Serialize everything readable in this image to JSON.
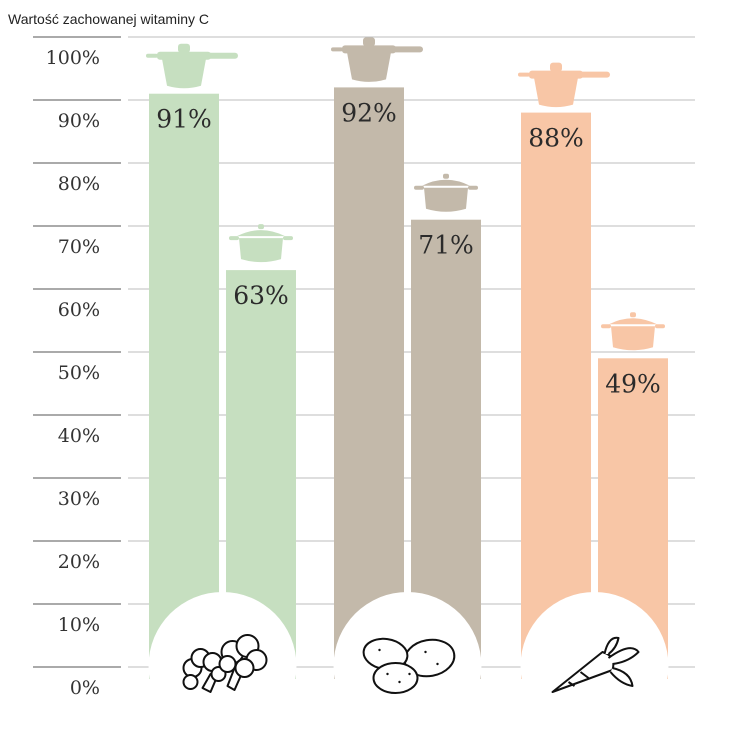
{
  "chart_data": {
    "type": "bar",
    "title": "Wartość zachowanej witaminy C",
    "xlabel": "",
    "ylabel": "",
    "ylim": [
      0,
      100
    ],
    "y_ticks": [
      "0%",
      "10%",
      "20%",
      "30%",
      "40%",
      "50%",
      "60%",
      "70%",
      "80%",
      "90%",
      "100%"
    ],
    "grid": true,
    "groups": [
      {
        "icon": "broccoli-icon",
        "color": "#c6dfc0",
        "bars": [
          {
            "method_icon": "pressure-cooker-icon",
            "value": 91,
            "label": "91%"
          },
          {
            "method_icon": "cooking-pot-icon",
            "value": 63,
            "label": "63%"
          }
        ]
      },
      {
        "icon": "potatoes-icon",
        "color": "#c3b9aa",
        "bars": [
          {
            "method_icon": "pressure-cooker-icon",
            "value": 92,
            "label": "92%"
          },
          {
            "method_icon": "cooking-pot-icon",
            "value": 71,
            "label": "71%"
          }
        ]
      },
      {
        "icon": "carrot-icon",
        "color": "#f8c6a6",
        "bars": [
          {
            "method_icon": "pressure-cooker-icon",
            "value": 88,
            "label": "88%"
          },
          {
            "method_icon": "cooking-pot-icon",
            "value": 49,
            "label": "49%"
          }
        ]
      }
    ]
  }
}
